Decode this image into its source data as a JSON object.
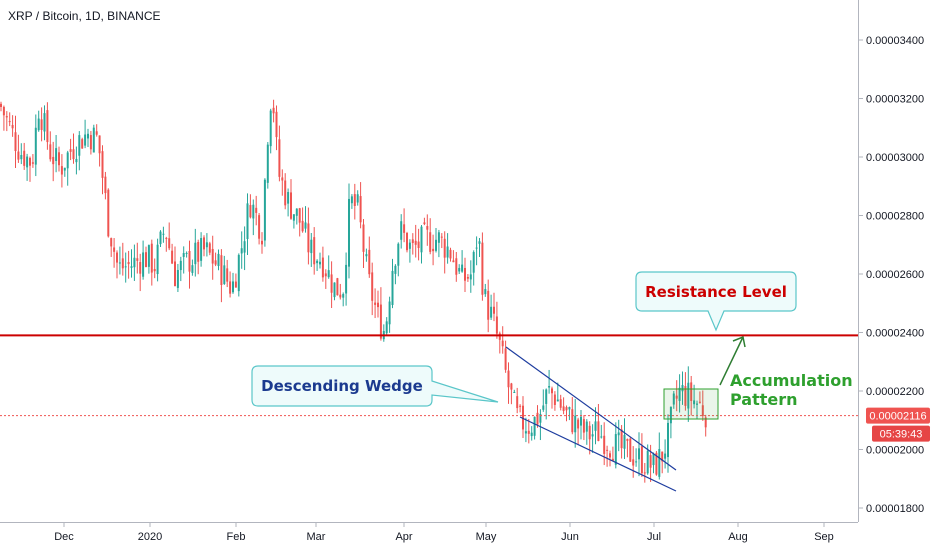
{
  "chart_data": {
    "type": "candlestick",
    "title": "XRP / Bitcoin, 1D, BINANCE",
    "x_tick_labels": [
      "Dec",
      "2020",
      "Feb",
      "Mar",
      "Apr",
      "May",
      "Jun",
      "Jul",
      "Aug",
      "Sep"
    ],
    "y_tick_labels": [
      "0.00003400",
      "0.00003200",
      "0.00003000",
      "0.00002800",
      "0.00002600",
      "0.00002400",
      "0.00002200",
      "0.00002000",
      "0.00001800"
    ],
    "y_ticks": [
      3.4e-05,
      3.2e-05,
      3e-05,
      2.8e-05,
      2.6e-05,
      2.4e-05,
      2.2e-05,
      2e-05,
      1.8e-05
    ],
    "ylim": [
      1.75e-05,
      3.52e-05
    ],
    "grid": false,
    "last_price": {
      "label": "0.00002116",
      "value": 2.116e-05,
      "countdown": "05:39:43"
    },
    "resistance_level": {
      "label": "Resistance Level",
      "value": 2.39e-05
    },
    "annotations": {
      "wedge": "Descending Wedge",
      "accumulation_line1": "Accumulation",
      "accumulation_line2": "Pattern"
    },
    "price_path": [
      [
        0,
        3.18e-05
      ],
      [
        10,
        3.1e-05
      ],
      [
        20,
        3.02e-05
      ],
      [
        32,
        2.98e-05
      ],
      [
        39,
        3.18e-05
      ],
      [
        50,
        3.02e-05
      ],
      [
        60,
        2.96e-05
      ],
      [
        70,
        3.02e-05
      ],
      [
        80,
        3.06e-05
      ],
      [
        88,
        3.08e-05
      ],
      [
        98,
        3.06e-05
      ],
      [
        108,
        2.78e-05
      ],
      [
        118,
        2.62e-05
      ],
      [
        130,
        2.63e-05
      ],
      [
        145,
        2.66e-05
      ],
      [
        155,
        2.63e-05
      ],
      [
        165,
        2.76e-05
      ],
      [
        175,
        2.6e-05
      ],
      [
        190,
        2.65e-05
      ],
      [
        205,
        2.68e-05
      ],
      [
        220,
        2.62e-05
      ],
      [
        232,
        2.55e-05
      ],
      [
        242,
        2.7e-05
      ],
      [
        250,
        2.85e-05
      ],
      [
        262,
        2.75e-05
      ],
      [
        268,
        3.1e-05
      ],
      [
        272,
        3.25e-05
      ],
      [
        278,
        2.95e-05
      ],
      [
        288,
        2.85e-05
      ],
      [
        300,
        2.78e-05
      ],
      [
        310,
        2.68e-05
      ],
      [
        322,
        2.65e-05
      ],
      [
        335,
        2.55e-05
      ],
      [
        343,
        2.55e-05
      ],
      [
        350,
        2.85e-05
      ],
      [
        358,
        2.82e-05
      ],
      [
        368,
        2.58e-05
      ],
      [
        378,
        2.45e-05
      ],
      [
        385,
        2.4e-05
      ],
      [
        392,
        2.62e-05
      ],
      [
        400,
        2.75e-05
      ],
      [
        412,
        2.68e-05
      ],
      [
        425,
        2.72e-05
      ],
      [
        438,
        2.72e-05
      ],
      [
        450,
        2.68e-05
      ],
      [
        462,
        2.58e-05
      ],
      [
        472,
        2.6e-05
      ],
      [
        478,
        2.75e-05
      ],
      [
        484,
        2.52e-05
      ],
      [
        492,
        2.45e-05
      ],
      [
        500,
        2.35e-05
      ],
      [
        508,
        2.22e-05
      ],
      [
        518,
        2.1e-05
      ],
      [
        530,
        2.08e-05
      ],
      [
        540,
        2.12e-05
      ],
      [
        548,
        2.2e-05
      ],
      [
        556,
        2.18e-05
      ],
      [
        566,
        2.12e-05
      ],
      [
        578,
        2.08e-05
      ],
      [
        588,
        2.05e-05
      ],
      [
        598,
        2.06e-05
      ],
      [
        610,
        2.02e-05
      ],
      [
        622,
        2e-05
      ],
      [
        634,
        1.98e-05
      ],
      [
        644,
        1.96e-05
      ],
      [
        654,
        1.94e-05
      ],
      [
        662,
        1.98e-05
      ],
      [
        668,
        2.04e-05
      ],
      [
        674,
        2.15e-05
      ],
      [
        680,
        2.2e-05
      ],
      [
        690,
        2.18e-05
      ],
      [
        700,
        2.15e-05
      ],
      [
        708,
        2.12e-05
      ]
    ]
  },
  "colors": {
    "up": "#26a69a",
    "down": "#ef5350",
    "resistance": "#cc0000",
    "wedge": "#1e3d9f",
    "accent_green": "#2ea02e",
    "callout_border": "#5ac6c9",
    "callout_fill": "#eefbfb",
    "price_badge": "#ef5350",
    "countdown_badge": "#e64545",
    "axis_text": "#131722",
    "axis_line": "#b2b5be"
  }
}
